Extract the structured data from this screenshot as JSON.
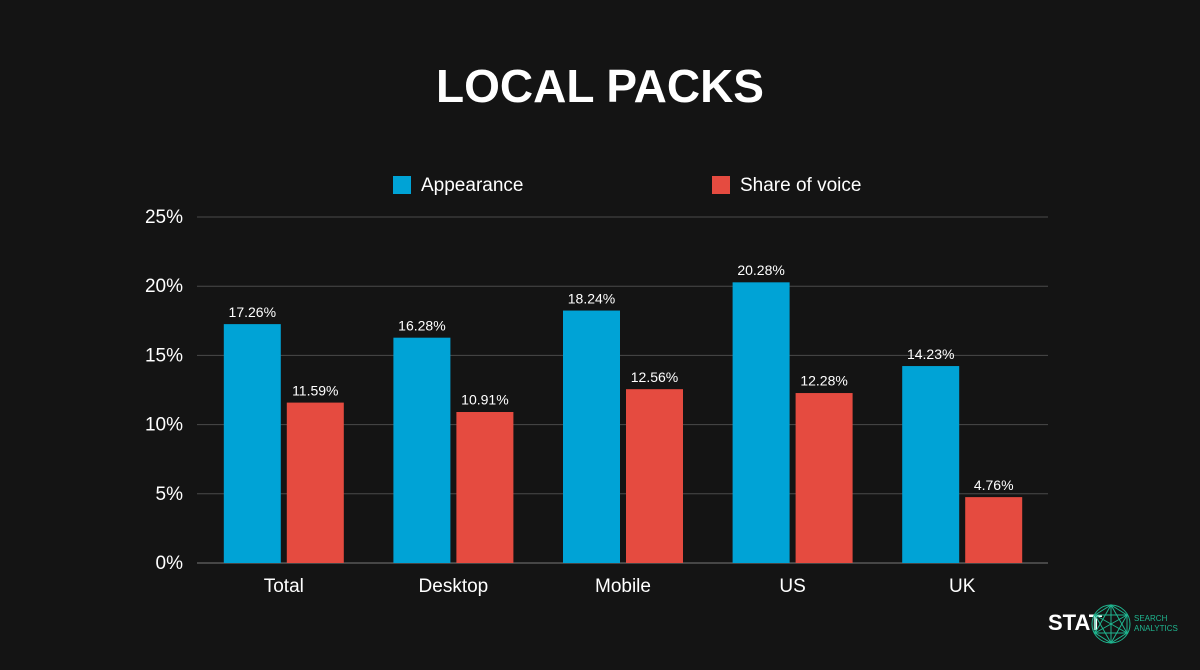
{
  "chart_data": {
    "type": "bar",
    "title": "LOCAL PACKS",
    "categories": [
      "Total",
      "Desktop",
      "Mobile",
      "US",
      "UK"
    ],
    "series": [
      {
        "name": "Appearance",
        "color": "#00a3d6",
        "values": [
          17.26,
          16.28,
          18.24,
          20.28,
          14.23
        ],
        "value_labels": [
          "17.26%",
          "16.28%",
          "18.24%",
          "20.28%",
          "14.23%"
        ]
      },
      {
        "name": "Share of voice",
        "color": "#e54b40",
        "values": [
          11.59,
          10.91,
          12.56,
          12.28,
          4.76
        ],
        "value_labels": [
          "11.59%",
          "10.91%",
          "12.56%",
          "12.28%",
          "4.76%"
        ]
      }
    ],
    "ylim": [
      0,
      25
    ],
    "yticks": [
      {
        "value": 0,
        "label": "0%"
      },
      {
        "value": 5,
        "label": "5%"
      },
      {
        "value": 10,
        "label": "10%"
      },
      {
        "value": 15,
        "label": "15%"
      },
      {
        "value": 20,
        "label": "20%"
      },
      {
        "value": 25,
        "label": "25%"
      }
    ],
    "grid": true,
    "legend": "top"
  },
  "branding": {
    "name": "STAT",
    "tagline": [
      "SEARCH",
      "ANALYTICS"
    ]
  }
}
